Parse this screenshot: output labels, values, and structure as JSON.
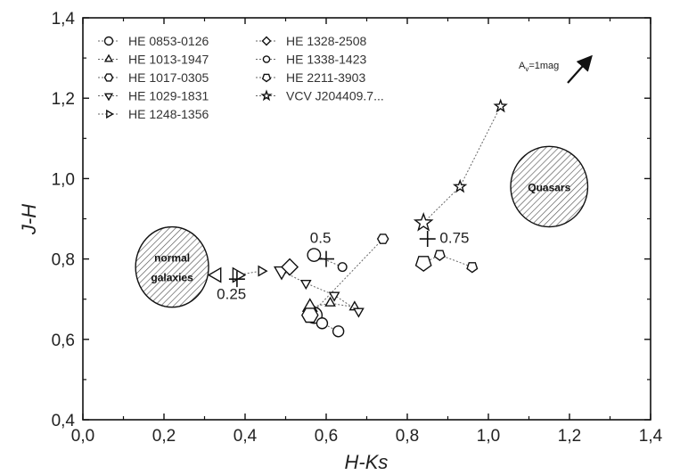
{
  "chart_data": {
    "type": "scatter",
    "xlabel": "H-Ks",
    "ylabel": "J-H",
    "xlim": [
      0.0,
      1.4
    ],
    "ylim": [
      0.4,
      1.4
    ],
    "xticks": [
      "0,0",
      "0,2",
      "0,4",
      "0,6",
      "0,8",
      "1,0",
      "1,2",
      "1,4"
    ],
    "yticks": [
      "0,4",
      "0,6",
      "0,8",
      "1,0",
      "1,2",
      "1,4"
    ],
    "grid": false,
    "legend_position": "top-left",
    "series": [
      {
        "name": "HE 0853-0126",
        "marker": "circle",
        "points": [
          [
            0.57,
            0.66
          ],
          [
            0.59,
            0.64
          ],
          [
            0.63,
            0.62
          ]
        ]
      },
      {
        "name": "HE 1013-1947",
        "marker": "triangle-up",
        "points": [
          [
            0.56,
            0.68
          ],
          [
            0.61,
            0.69
          ],
          [
            0.67,
            0.68
          ]
        ]
      },
      {
        "name": "HE 1017-0305",
        "marker": "hexagon",
        "points": [
          [
            0.56,
            0.66
          ],
          [
            0.74,
            0.85
          ]
        ]
      },
      {
        "name": "HE 1029-1831",
        "marker": "triangle-down",
        "points": [
          [
            0.49,
            0.77
          ],
          [
            0.55,
            0.74
          ],
          [
            0.62,
            0.71
          ],
          [
            0.68,
            0.67
          ]
        ]
      },
      {
        "name": "HE 1248-1356",
        "marker": "triangle-right",
        "points": [
          [
            0.38,
            0.76
          ],
          [
            0.44,
            0.77
          ]
        ]
      },
      {
        "name": "HE 1328-2508",
        "marker": "diamond",
        "points": [
          [
            0.51,
            0.78
          ]
        ]
      },
      {
        "name": "HE 1338-1423",
        "marker": "circle-small",
        "points": [
          [
            0.57,
            0.81
          ],
          [
            0.64,
            0.78
          ]
        ]
      },
      {
        "name": "HE 2211-3903",
        "marker": "pentagon",
        "points": [
          [
            0.84,
            0.79
          ],
          [
            0.88,
            0.81
          ],
          [
            0.96,
            0.78
          ]
        ]
      },
      {
        "name": "VCV J204409.7...",
        "marker": "star",
        "points": [
          [
            0.84,
            0.89
          ],
          [
            0.93,
            0.98
          ],
          [
            1.03,
            1.18
          ]
        ]
      },
      {
        "name": "",
        "marker": "triangle-left",
        "points": [
          [
            0.33,
            0.76
          ]
        ]
      }
    ],
    "crosses": [
      [
        0.38,
        0.75
      ],
      [
        0.6,
        0.8
      ],
      [
        0.85,
        0.85
      ]
    ],
    "annotations": [
      {
        "text": "0.25",
        "x": 0.33,
        "y": 0.7
      },
      {
        "text": "0.5",
        "x": 0.56,
        "y": 0.84
      },
      {
        "text": "0.75",
        "x": 0.88,
        "y": 0.84
      }
    ],
    "regions": [
      {
        "label_lines": [
          "normal",
          "galaxies"
        ],
        "cx": 0.22,
        "cy": 0.78,
        "rx": 0.09,
        "ry": 0.1
      },
      {
        "label_lines": [
          "Quasars"
        ],
        "cx": 1.15,
        "cy": 0.98,
        "rx": 0.095,
        "ry": 0.1
      }
    ],
    "reddening": {
      "label": "A",
      "sub": "v",
      "suffix": "=1mag"
    }
  }
}
